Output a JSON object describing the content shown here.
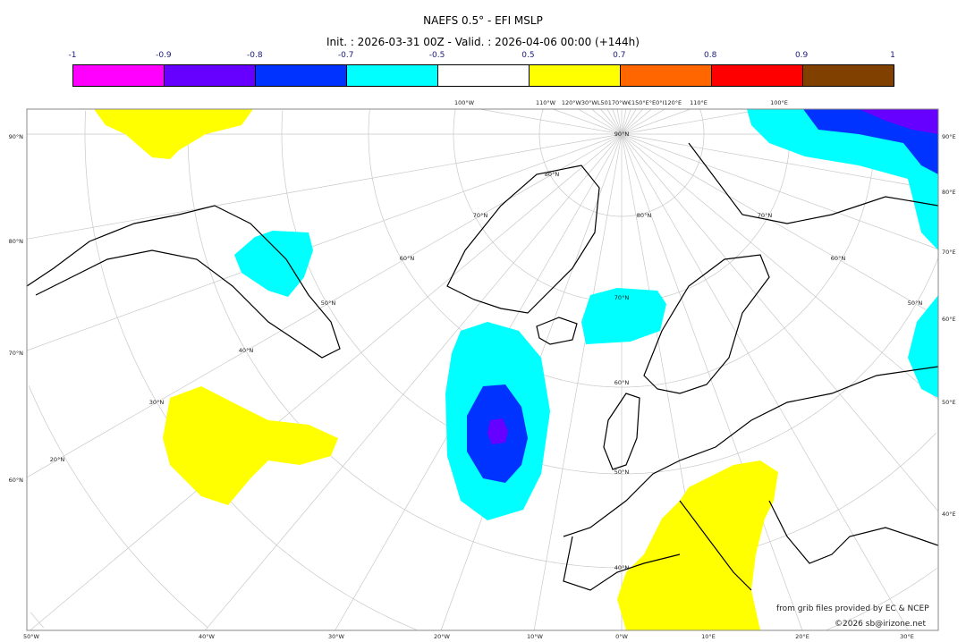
{
  "header": {
    "title": "NAEFS 0.5° - EFI MSLP",
    "subtitle": "Init. : 2026-03-31 00Z - Valid. : 2026-04-06 00:00 (+144h)"
  },
  "colorbar": {
    "labels": [
      "-1",
      "-0.9",
      "-0.8",
      "-0.7",
      "-0.5",
      "0.5",
      "0.7",
      "0.8",
      "0.9",
      "1"
    ],
    "colors": [
      "#ff00ff",
      "#6600ff",
      "#0033ff",
      "#00ffff",
      "#ffffff",
      "#ffff00",
      "#ff6600",
      "#ff0000",
      "#804000"
    ]
  },
  "axes": {
    "left": [
      "90°N",
      "80°N",
      "70°N",
      "60°N"
    ],
    "right": [
      "90°E",
      "80°E",
      "70°E",
      "60°E",
      "50°E",
      "40°E"
    ],
    "bottom": [
      "50°W",
      "40°W",
      "30°W",
      "20°W",
      "10°W",
      "0°W",
      "10°E",
      "20°E",
      "30°E"
    ],
    "top": [
      "100°W",
      "110°W",
      "120°W30°WL50170°W€150°E°E0°I120°E",
      "110°E",
      "100°E"
    ],
    "inner_lat": [
      "90°N",
      "80°N",
      "70°N",
      "60°N",
      "50°N",
      "40°N",
      "30°N",
      "20°N",
      "80°N",
      "70°N",
      "60°N",
      "50°N",
      "40°N",
      "70°N",
      "60°N",
      "50°N"
    ]
  },
  "credits": {
    "source": "from grib files provided by EC & NCEP",
    "copyright": "©2026 sb@irizone.net"
  }
}
